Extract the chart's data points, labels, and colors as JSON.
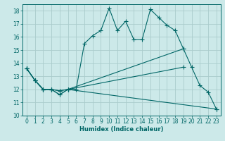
{
  "xlabel": "Humidex (Indice chaleur)",
  "background_color": "#cce9e9",
  "grid_color": "#aacccc",
  "line_color": "#006666",
  "xlim": [
    -0.5,
    23.5
  ],
  "ylim": [
    10,
    18.5
  ],
  "yticks": [
    10,
    11,
    12,
    13,
    14,
    15,
    16,
    17,
    18
  ],
  "xticks": [
    0,
    1,
    2,
    3,
    4,
    5,
    6,
    7,
    8,
    9,
    10,
    11,
    12,
    13,
    14,
    15,
    16,
    17,
    18,
    19,
    20,
    21,
    22,
    23
  ],
  "lines": [
    {
      "x": [
        0,
        1,
        2,
        3,
        4,
        5,
        6,
        7,
        8,
        9,
        10,
        11,
        12,
        13,
        14,
        15,
        16,
        17,
        18,
        19,
        20,
        21,
        22,
        23
      ],
      "y": [
        13.6,
        12.7,
        12.0,
        12.0,
        11.6,
        12.0,
        12.0,
        15.5,
        16.1,
        16.5,
        18.2,
        16.5,
        17.2,
        15.8,
        15.8,
        18.1,
        17.5,
        16.9,
        16.5,
        15.1,
        13.7,
        12.3,
        11.8,
        10.5
      ]
    },
    {
      "x": [
        0,
        1,
        2,
        3,
        4,
        5,
        19
      ],
      "y": [
        13.6,
        12.7,
        12.0,
        12.0,
        11.9,
        12.0,
        15.1
      ]
    },
    {
      "x": [
        0,
        1,
        2,
        3,
        4,
        5,
        19
      ],
      "y": [
        13.6,
        12.7,
        12.0,
        12.0,
        11.9,
        12.0,
        13.7
      ]
    },
    {
      "x": [
        0,
        1,
        2,
        3,
        4,
        5,
        23
      ],
      "y": [
        13.6,
        12.7,
        12.0,
        12.0,
        11.6,
        12.0,
        10.5
      ]
    }
  ]
}
